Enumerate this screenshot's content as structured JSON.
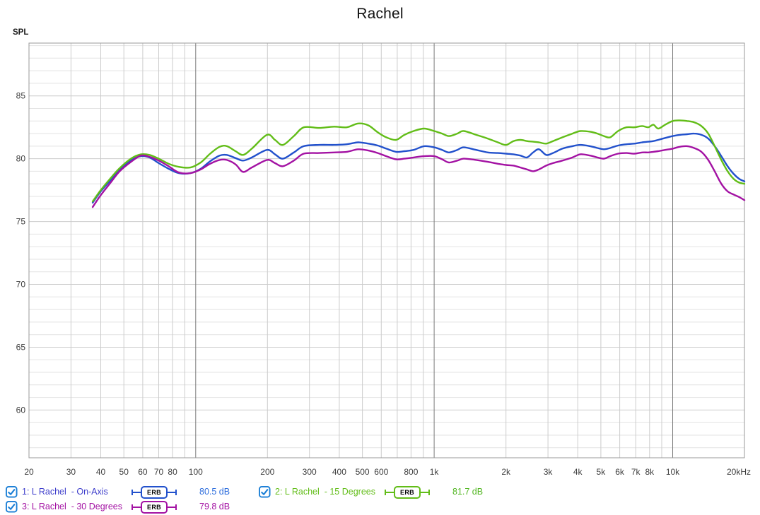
{
  "page": {
    "title": "Rachel",
    "y_axis_title": "SPL"
  },
  "colors": {
    "on_axis": "#2251cc",
    "deg15": "#62bd18",
    "deg30": "#a312a3",
    "checkbox": "#1b7fd6",
    "grid_minor_h": "#e3e3e3",
    "grid_major_h": "#cbcbcb",
    "grid_minor_v": "#cccccc",
    "grid_major_v": "#7a7a7a",
    "border": "#9a9a9a",
    "tick_text": "#3d3d3d"
  },
  "chart_data": {
    "type": "line",
    "title": "Rachel",
    "ylabel": "SPL",
    "x_scale": "log",
    "xlim": [
      20,
      20000
    ],
    "ylim": [
      56.2,
      89.2
    ],
    "grid": true,
    "y_major_ticks": [
      60,
      65,
      70,
      75,
      80,
      85
    ],
    "y_minor_step": 1,
    "x_ticks": [
      {
        "f": 20,
        "label": "20"
      },
      {
        "f": 30,
        "label": "30"
      },
      {
        "f": 40,
        "label": "40"
      },
      {
        "f": 50,
        "label": "50"
      },
      {
        "f": 60,
        "label": "60"
      },
      {
        "f": 70,
        "label": "70"
      },
      {
        "f": 80,
        "label": "80"
      },
      {
        "f": 90,
        "label": ""
      },
      {
        "f": 100,
        "label": "100"
      },
      {
        "f": 200,
        "label": "200"
      },
      {
        "f": 300,
        "label": "300"
      },
      {
        "f": 400,
        "label": "400"
      },
      {
        "f": 500,
        "label": "500"
      },
      {
        "f": 600,
        "label": "600"
      },
      {
        "f": 700,
        "label": ""
      },
      {
        "f": 800,
        "label": "800"
      },
      {
        "f": 900,
        "label": ""
      },
      {
        "f": 1000,
        "label": "1k"
      },
      {
        "f": 2000,
        "label": "2k"
      },
      {
        "f": 3000,
        "label": "3k"
      },
      {
        "f": 4000,
        "label": "4k"
      },
      {
        "f": 5000,
        "label": "5k"
      },
      {
        "f": 6000,
        "label": "6k"
      },
      {
        "f": 7000,
        "label": "7k"
      },
      {
        "f": 8000,
        "label": "8k"
      },
      {
        "f": 9000,
        "label": ""
      },
      {
        "f": 10000,
        "label": "10k"
      },
      {
        "f": 20000,
        "label": "20kHz"
      }
    ],
    "x_major_lines": [
      100,
      1000,
      10000
    ],
    "x": [
      37,
      40,
      44,
      48,
      54,
      59,
      64,
      70,
      77,
      85,
      95,
      105,
      115,
      126,
      135,
      147,
      158,
      172,
      199,
      215,
      232,
      258,
      284,
      330,
      380,
      430,
      480,
      530,
      580,
      630,
      692,
      750,
      820,
      908,
      1000,
      1080,
      1154,
      1250,
      1330,
      1500,
      1680,
      1850,
      2000,
      2150,
      2300,
      2450,
      2600,
      2750,
      2950,
      3150,
      3450,
      3800,
      4100,
      4500,
      4840,
      5150,
      5470,
      5900,
      6400,
      6900,
      7450,
      7900,
      8300,
      8700,
      9300,
      10000,
      10700,
      11500,
      12300,
      13200,
      14100,
      15000,
      16000,
      17000,
      18000,
      19000,
      20000
    ],
    "series": [
      {
        "name": "L Rachel - On-Axis",
        "color": "#2251cc",
        "values": [
          76.5,
          77.4,
          78.3,
          79.1,
          79.9,
          80.2,
          80.1,
          79.65,
          79.2,
          78.85,
          78.85,
          79.2,
          79.8,
          80.25,
          80.3,
          80.05,
          79.85,
          80.1,
          80.7,
          80.35,
          80.0,
          80.5,
          81.0,
          81.1,
          81.1,
          81.15,
          81.3,
          81.2,
          81.05,
          80.8,
          80.55,
          80.6,
          80.7,
          81.0,
          80.9,
          80.7,
          80.5,
          80.7,
          80.9,
          80.7,
          80.5,
          80.45,
          80.4,
          80.35,
          80.25,
          80.1,
          80.5,
          80.75,
          80.3,
          80.45,
          80.8,
          81.0,
          81.1,
          81.0,
          80.85,
          80.75,
          80.85,
          81.05,
          81.15,
          81.2,
          81.3,
          81.35,
          81.4,
          81.5,
          81.65,
          81.8,
          81.9,
          81.95,
          82.0,
          81.9,
          81.6,
          81.0,
          80.2,
          79.4,
          78.8,
          78.4,
          78.2
        ]
      },
      {
        "name": "L Rachel - 15 Degrees",
        "color": "#62bd18",
        "values": [
          76.6,
          77.5,
          78.45,
          79.25,
          80.05,
          80.35,
          80.3,
          80.0,
          79.6,
          79.35,
          79.3,
          79.7,
          80.4,
          80.95,
          81.0,
          80.6,
          80.3,
          80.8,
          81.9,
          81.5,
          81.1,
          81.8,
          82.5,
          82.45,
          82.55,
          82.5,
          82.8,
          82.65,
          82.1,
          81.7,
          81.5,
          81.9,
          82.2,
          82.4,
          82.2,
          82.0,
          81.8,
          82.0,
          82.2,
          81.9,
          81.6,
          81.3,
          81.1,
          81.4,
          81.5,
          81.4,
          81.35,
          81.3,
          81.2,
          81.4,
          81.7,
          82.0,
          82.2,
          82.15,
          82.0,
          81.8,
          81.7,
          82.2,
          82.5,
          82.5,
          82.6,
          82.5,
          82.7,
          82.4,
          82.7,
          83.0,
          83.05,
          83.0,
          82.9,
          82.6,
          82.0,
          81.0,
          79.9,
          79.0,
          78.4,
          78.1,
          78.0
        ]
      },
      {
        "name": "L Rachel - 30 Degrees",
        "color": "#a312a3",
        "values": [
          76.15,
          77.1,
          78.1,
          79.0,
          79.8,
          80.25,
          80.15,
          79.85,
          79.4,
          78.9,
          78.85,
          79.15,
          79.6,
          79.9,
          79.9,
          79.55,
          78.95,
          79.3,
          79.9,
          79.65,
          79.4,
          79.85,
          80.4,
          80.45,
          80.5,
          80.55,
          80.75,
          80.65,
          80.45,
          80.2,
          79.95,
          80.0,
          80.1,
          80.2,
          80.2,
          79.95,
          79.7,
          79.85,
          80.0,
          79.9,
          79.75,
          79.6,
          79.5,
          79.45,
          79.3,
          79.15,
          79.0,
          79.15,
          79.45,
          79.65,
          79.85,
          80.1,
          80.35,
          80.25,
          80.1,
          80.0,
          80.2,
          80.4,
          80.45,
          80.4,
          80.5,
          80.5,
          80.55,
          80.6,
          80.7,
          80.8,
          80.95,
          81.0,
          80.85,
          80.55,
          79.9,
          79.0,
          78.0,
          77.4,
          77.15,
          76.95,
          76.7
        ]
      }
    ]
  },
  "legend": {
    "items": [
      {
        "label": "1: L Rachel  - On-Axis",
        "badge": "ERB",
        "value": "80.5 dB",
        "color": "#2251cc",
        "label_color": "#3d3dcb",
        "value_color": "#2e6edd",
        "checked": true
      },
      {
        "label": "2: L Rachel  - 15 Degrees",
        "badge": "ERB",
        "value": "81.7 dB",
        "color": "#62bd18",
        "label_color": "#62bd18",
        "value_color": "#52b622",
        "checked": true
      },
      {
        "label": "3: L Rachel  - 30 Degrees",
        "badge": "ERB",
        "value": "79.8 dB",
        "color": "#a312a3",
        "label_color": "#a312a3",
        "value_color": "#a312a3",
        "checked": true
      }
    ]
  }
}
